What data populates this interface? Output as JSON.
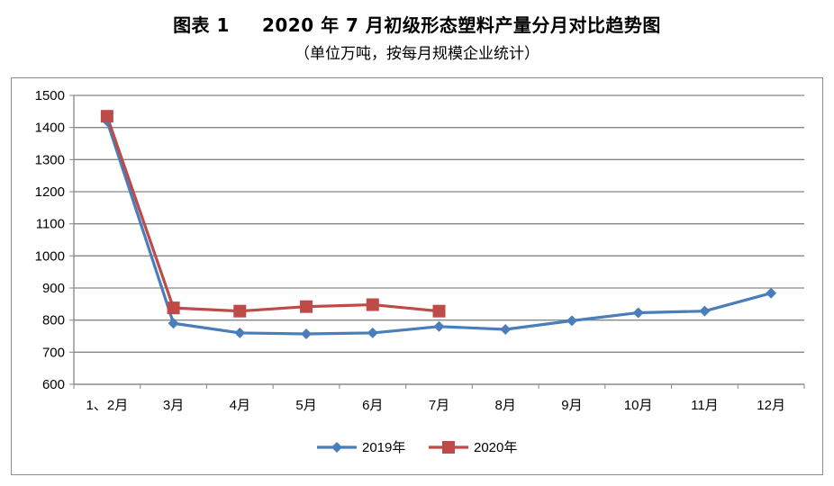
{
  "header": {
    "figure_label": "图表 1",
    "title": "2020 年 7 月初级形态塑料产量分月对比趋势图",
    "subtitle": "（单位万吨，按每月规模企业统计）"
  },
  "chart_data": {
    "type": "line",
    "categories": [
      "1、2月",
      "3月",
      "4月",
      "5月",
      "6月",
      "7月",
      "8月",
      "9月",
      "10月",
      "11月",
      "12月"
    ],
    "ylim": [
      600,
      1500
    ],
    "yticks": [
      600,
      700,
      800,
      900,
      1000,
      1100,
      1200,
      1300,
      1400,
      1500
    ],
    "grid": true,
    "legend_position": "bottom",
    "series": [
      {
        "name": "2019年",
        "color": "#4a7ebb",
        "marker": "diamond",
        "values": [
          1420,
          790,
          760,
          757,
          760,
          780,
          771,
          798,
          823,
          828,
          884
        ]
      },
      {
        "name": "2020年",
        "color": "#be4b48",
        "marker": "square",
        "values": [
          1435,
          838,
          828,
          842,
          848,
          828,
          null,
          null,
          null,
          null,
          null
        ]
      }
    ]
  }
}
